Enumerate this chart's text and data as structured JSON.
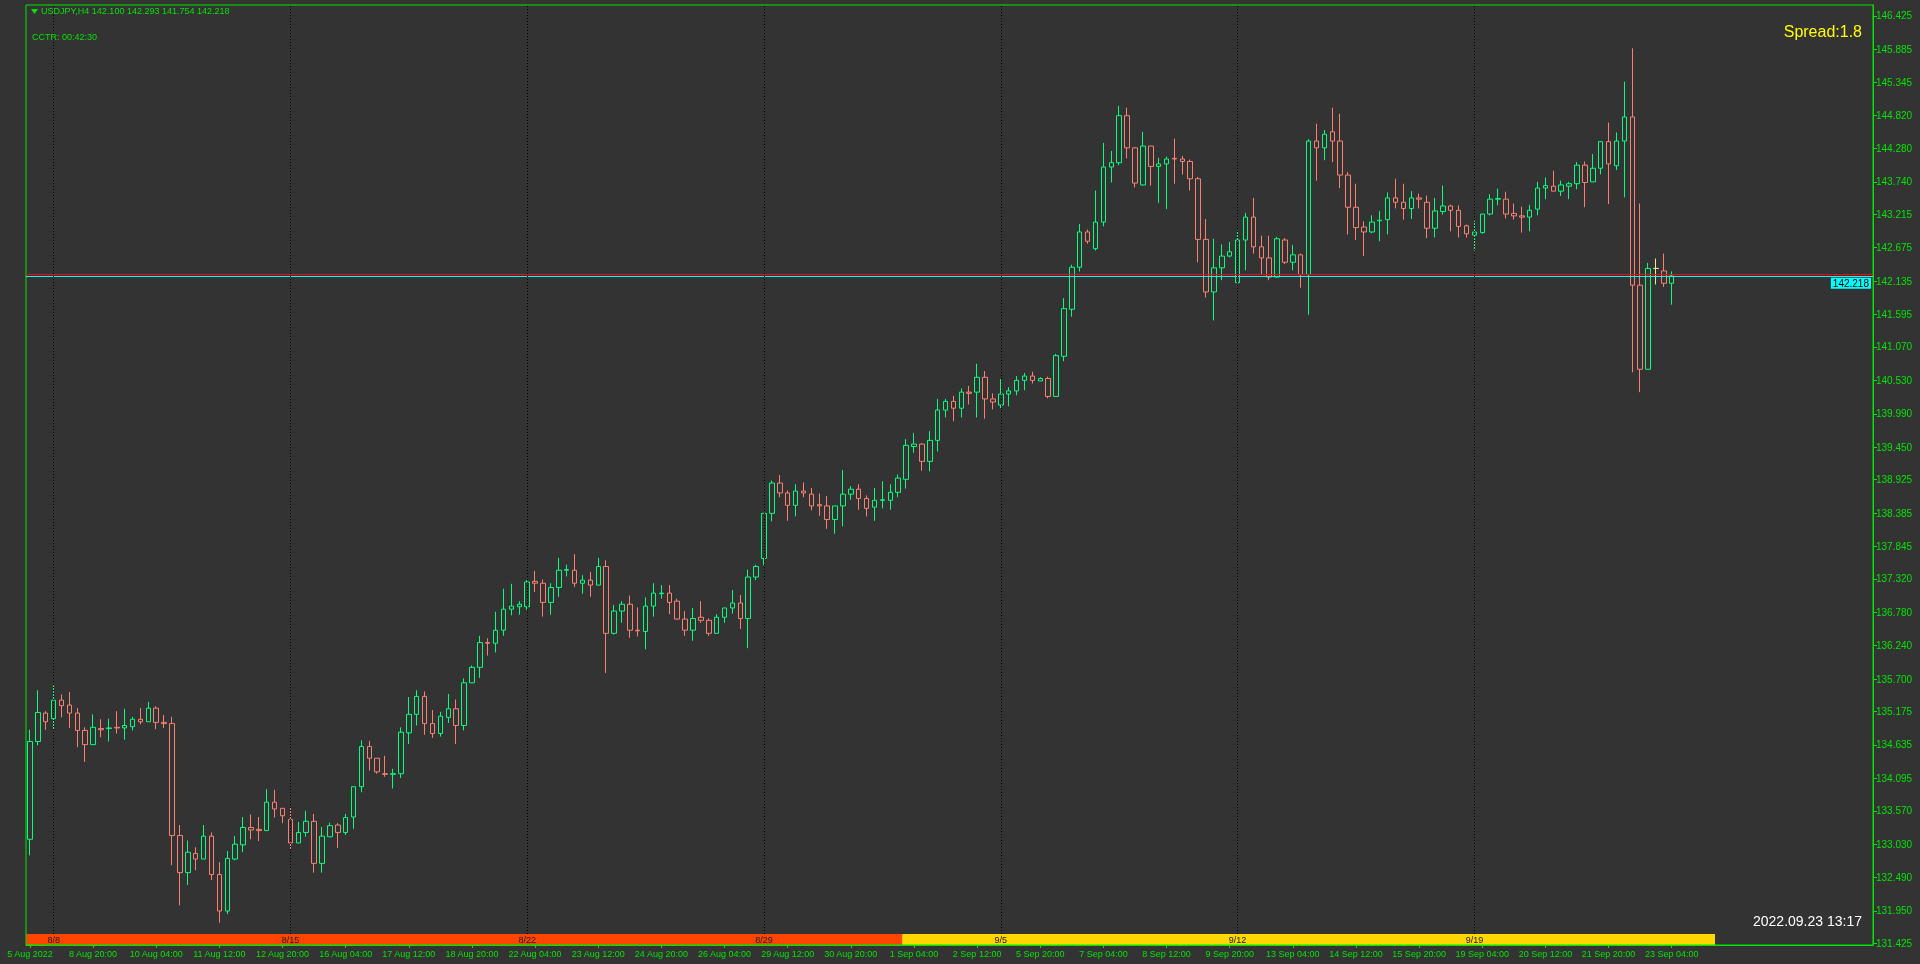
{
  "chart_data": {
    "type": "candlestick",
    "categories": [
      "5 Aug 2022",
      null,
      null,
      null,
      null,
      null,
      null,
      null,
      "8 Aug 20:00",
      null,
      null,
      null,
      null,
      null,
      null,
      null,
      "10 Aug 04:00",
      null,
      null,
      null,
      null,
      null,
      null,
      null,
      "11 Aug 12:00",
      null,
      null,
      null,
      null,
      null,
      null,
      null,
      "12 Aug 20:00",
      null,
      null,
      null,
      null,
      null,
      null,
      null,
      "16 Aug 04:00",
      null,
      null,
      null,
      null,
      null,
      null,
      null,
      "17 Aug 12:00",
      null,
      null,
      null,
      null,
      null,
      null,
      null,
      "18 Aug 20:00",
      null,
      null,
      null,
      null,
      null,
      null,
      null,
      "22 Aug 04:00",
      null,
      null,
      null,
      null,
      null,
      null,
      null,
      "23 Aug 12:00",
      null,
      null,
      null,
      null,
      null,
      null,
      null,
      "24 Aug 20:00",
      null,
      null,
      null,
      null,
      null,
      null,
      null,
      "26 Aug 04:00",
      null,
      null,
      null,
      null,
      null,
      null,
      null,
      "29 Aug 12:00",
      null,
      null,
      null,
      null,
      null,
      null,
      null,
      "30 Aug 20:00",
      null,
      null,
      null,
      null,
      null,
      null,
      null,
      "1 Sep 04:00",
      null,
      null,
      null,
      null,
      null,
      null,
      null,
      "2 Sep 12:00",
      null,
      null,
      null,
      null,
      null,
      null,
      null,
      "5 Sep 20:00",
      null,
      null,
      null,
      null,
      null,
      null,
      null,
      "7 Sep 04:00",
      null,
      null,
      null,
      null,
      null,
      null,
      null,
      "8 Sep 12:00",
      null,
      null,
      null,
      null,
      null,
      null,
      null,
      "9 Sep 20:00",
      null,
      null,
      null,
      null,
      null,
      null,
      null,
      "13 Sep 04:00",
      null,
      null,
      null,
      null,
      null,
      null,
      null,
      "14 Sep 12:00",
      null,
      null,
      null,
      null,
      null,
      null,
      null,
      "15 Sep 20:00",
      null,
      null,
      null,
      null,
      null,
      null,
      null,
      "19 Sep 04:00",
      null,
      null,
      null,
      null,
      null,
      null,
      null,
      "20 Sep 12:00",
      null,
      null,
      null,
      null,
      null,
      null,
      null,
      "21 Sep 20:00",
      null,
      null,
      null,
      null,
      null,
      null,
      null,
      "23 Sep 04:00",
      null,
      null,
      null,
      null,
      null,
      null,
      null,
      null,
      null,
      null,
      null,
      null,
      null,
      null,
      null,
      null,
      null,
      null,
      null,
      null,
      null,
      null,
      null,
      null,
      null
    ],
    "ohlc": [
      [
        133.11,
        134.88,
        132.85,
        134.69
      ],
      [
        134.69,
        135.52,
        134.63,
        135.16
      ],
      [
        135.15,
        135.18,
        134.88,
        135.01
      ],
      [
        135.06,
        135.6,
        134.89,
        135.36
      ],
      [
        135.36,
        135.45,
        135.08,
        135.27
      ],
      [
        135.28,
        135.49,
        134.91,
        135.15
      ],
      [
        135.15,
        135.23,
        134.6,
        134.87
      ],
      [
        134.87,
        134.92,
        134.36,
        134.64
      ],
      [
        134.64,
        135.13,
        134.64,
        134.92
      ],
      [
        134.9,
        135.05,
        134.76,
        134.88
      ],
      [
        134.9,
        135.06,
        134.69,
        134.91
      ],
      [
        134.92,
        135.18,
        134.82,
        134.91
      ],
      [
        134.91,
        135.22,
        134.72,
        134.95
      ],
      [
        134.93,
        135.09,
        134.87,
        135.05
      ],
      [
        135.05,
        135.23,
        134.97,
        135.01
      ],
      [
        135.01,
        135.33,
        135.01,
        135.23
      ],
      [
        135.23,
        135.26,
        134.89,
        135.0
      ],
      [
        135.0,
        135.12,
        134.91,
        134.98
      ],
      [
        134.98,
        135.09,
        132.69,
        133.17
      ],
      [
        133.17,
        133.34,
        132.04,
        132.57
      ],
      [
        132.57,
        133.09,
        132.37,
        132.9
      ],
      [
        132.88,
        132.98,
        132.61,
        132.79
      ],
      [
        132.79,
        133.34,
        132.79,
        133.16
      ],
      [
        133.16,
        133.22,
        132.45,
        132.54
      ],
      [
        132.54,
        132.74,
        131.76,
        131.95
      ],
      [
        131.95,
        132.92,
        131.9,
        132.8
      ],
      [
        132.79,
        133.16,
        132.77,
        133.03
      ],
      [
        133.02,
        133.47,
        132.9,
        133.3
      ],
      [
        133.3,
        133.51,
        133.11,
        133.26
      ],
      [
        133.27,
        133.47,
        133.08,
        133.25
      ],
      [
        133.25,
        133.92,
        133.25,
        133.71
      ],
      [
        133.71,
        133.91,
        133.46,
        133.6
      ],
      [
        133.61,
        133.61,
        133.37,
        133.49
      ],
      [
        133.43,
        133.63,
        132.94,
        133.05
      ],
      [
        133.05,
        133.39,
        133.05,
        133.22
      ],
      [
        133.22,
        133.57,
        133.15,
        133.4
      ],
      [
        133.4,
        133.52,
        132.57,
        132.72
      ],
      [
        132.72,
        133.31,
        132.57,
        133.16
      ],
      [
        133.15,
        133.38,
        133.15,
        133.33
      ],
      [
        133.34,
        133.37,
        132.97,
        133.22
      ],
      [
        133.22,
        133.52,
        133.18,
        133.46
      ],
      [
        133.47,
        133.96,
        133.28,
        133.96
      ],
      [
        133.96,
        134.71,
        133.87,
        134.61
      ],
      [
        134.61,
        134.7,
        134.22,
        134.42
      ],
      [
        134.42,
        134.42,
        134.17,
        134.2
      ],
      [
        134.17,
        134.46,
        134.12,
        134.16
      ],
      [
        134.16,
        134.25,
        133.93,
        134.17
      ],
      [
        134.17,
        134.92,
        134.1,
        134.84
      ],
      [
        134.83,
        135.41,
        134.65,
        135.13
      ],
      [
        135.13,
        135.52,
        134.95,
        135.42
      ],
      [
        135.42,
        135.5,
        134.8,
        134.98
      ],
      [
        134.98,
        135.2,
        134.75,
        134.82
      ],
      [
        134.82,
        135.17,
        134.77,
        135.1
      ],
      [
        135.08,
        135.46,
        134.99,
        135.22
      ],
      [
        135.22,
        135.37,
        134.65,
        134.95
      ],
      [
        134.95,
        135.71,
        134.87,
        135.64
      ],
      [
        135.64,
        135.92,
        135.64,
        135.89
      ],
      [
        135.89,
        136.4,
        135.72,
        136.29
      ],
      [
        136.29,
        136.36,
        136.08,
        136.28
      ],
      [
        136.28,
        136.79,
        136.13,
        136.49
      ],
      [
        136.49,
        137.16,
        136.4,
        136.83
      ],
      [
        136.83,
        137.24,
        136.73,
        136.88
      ],
      [
        136.87,
        136.96,
        136.74,
        136.91
      ],
      [
        136.87,
        137.3,
        136.82,
        137.27
      ],
      [
        137.28,
        137.45,
        137.11,
        137.25
      ],
      [
        137.25,
        137.31,
        136.71,
        136.94
      ],
      [
        136.94,
        137.25,
        136.74,
        137.18
      ],
      [
        137.18,
        137.66,
        137.03,
        137.46
      ],
      [
        137.46,
        137.55,
        137.36,
        137.47
      ],
      [
        137.46,
        137.72,
        137.19,
        137.25
      ],
      [
        137.25,
        137.38,
        137.08,
        137.3
      ],
      [
        137.3,
        137.43,
        137.03,
        137.22
      ],
      [
        137.22,
        137.66,
        137.22,
        137.52
      ],
      [
        137.52,
        137.62,
        135.8,
        136.44
      ],
      [
        136.44,
        136.9,
        136.42,
        136.8
      ],
      [
        136.8,
        136.96,
        136.61,
        136.91
      ],
      [
        136.91,
        137.05,
        136.37,
        136.49
      ],
      [
        136.49,
        136.86,
        136.39,
        136.48
      ],
      [
        136.47,
        137.02,
        136.18,
        136.88
      ],
      [
        136.88,
        137.25,
        136.71,
        137.09
      ],
      [
        137.08,
        137.22,
        137.0,
        137.09
      ],
      [
        137.09,
        137.22,
        136.75,
        136.94
      ],
      [
        136.96,
        137.0,
        136.66,
        136.67
      ],
      [
        136.67,
        136.8,
        136.4,
        136.49
      ],
      [
        136.49,
        136.85,
        136.32,
        136.68
      ],
      [
        136.7,
        136.96,
        136.61,
        136.65
      ],
      [
        136.65,
        136.68,
        136.4,
        136.44
      ],
      [
        136.44,
        136.75,
        136.44,
        136.7
      ],
      [
        136.7,
        136.85,
        136.61,
        136.85
      ],
      [
        136.85,
        137.14,
        136.76,
        136.93
      ],
      [
        136.93,
        137.06,
        136.51,
        136.68
      ],
      [
        136.68,
        137.47,
        136.2,
        137.35
      ],
      [
        137.35,
        137.55,
        137.3,
        137.52
      ],
      [
        137.65,
        138.38,
        137.54,
        138.38
      ],
      [
        138.38,
        138.91,
        138.25,
        138.87
      ],
      [
        138.87,
        139.0,
        138.64,
        138.71
      ],
      [
        138.71,
        138.75,
        138.26,
        138.51
      ],
      [
        138.51,
        138.85,
        138.33,
        138.74
      ],
      [
        138.74,
        138.88,
        138.64,
        138.71
      ],
      [
        138.69,
        138.79,
        138.43,
        138.5
      ],
      [
        138.52,
        138.7,
        138.34,
        138.5
      ],
      [
        138.5,
        138.66,
        138.13,
        138.28
      ],
      [
        138.28,
        138.5,
        138.05,
        138.5
      ],
      [
        138.5,
        139.08,
        138.17,
        138.69
      ],
      [
        138.69,
        138.82,
        138.6,
        138.77
      ],
      [
        138.77,
        138.85,
        138.44,
        138.62
      ],
      [
        138.62,
        138.67,
        138.33,
        138.46
      ],
      [
        138.48,
        138.79,
        138.26,
        138.59
      ],
      [
        138.59,
        138.9,
        138.46,
        138.6
      ],
      [
        138.59,
        138.85,
        138.44,
        138.72
      ],
      [
        138.72,
        139.01,
        138.64,
        138.95
      ],
      [
        138.93,
        139.58,
        138.78,
        139.48
      ],
      [
        139.46,
        139.68,
        139.36,
        139.5
      ],
      [
        139.5,
        139.51,
        139.07,
        139.22
      ],
      [
        139.22,
        139.71,
        139.06,
        139.56
      ],
      [
        139.56,
        140.23,
        139.38,
        140.05
      ],
      [
        140.05,
        140.23,
        139.93,
        140.19
      ],
      [
        140.19,
        140.28,
        139.87,
        140.08
      ],
      [
        140.08,
        140.4,
        139.93,
        140.34
      ],
      [
        140.34,
        140.44,
        140.14,
        140.32
      ],
      [
        140.34,
        140.8,
        139.93,
        140.58
      ],
      [
        140.58,
        140.68,
        139.91,
        140.23
      ],
      [
        140.23,
        140.32,
        140.06,
        140.18
      ],
      [
        140.13,
        140.55,
        140.08,
        140.31
      ],
      [
        140.31,
        140.42,
        140.11,
        140.36
      ],
      [
        140.36,
        140.6,
        140.29,
        140.53
      ],
      [
        140.53,
        140.65,
        140.37,
        140.6
      ],
      [
        140.6,
        140.67,
        140.48,
        140.53
      ],
      [
        140.52,
        140.58,
        140.52,
        140.56
      ],
      [
        140.56,
        140.59,
        140.24,
        140.27
      ],
      [
        140.27,
        140.96,
        140.27,
        140.93
      ],
      [
        140.92,
        141.86,
        140.84,
        141.69
      ],
      [
        141.68,
        142.4,
        141.56,
        142.36
      ],
      [
        142.36,
        143.06,
        142.29,
        142.93
      ],
      [
        142.93,
        142.97,
        142.74,
        142.78
      ],
      [
        142.66,
        143.6,
        142.63,
        143.09
      ],
      [
        143.09,
        144.37,
        143.02,
        143.98
      ],
      [
        143.98,
        144.24,
        143.73,
        144.05
      ],
      [
        144.05,
        144.97,
        144.01,
        144.81
      ],
      [
        144.81,
        144.94,
        144.12,
        144.29
      ],
      [
        144.29,
        144.3,
        143.65,
        143.72
      ],
      [
        143.69,
        144.55,
        143.68,
        144.32
      ],
      [
        144.32,
        144.32,
        143.68,
        143.99
      ],
      [
        143.99,
        144.13,
        143.4,
        144.03
      ],
      [
        144.03,
        144.15,
        143.3,
        144.11
      ],
      [
        144.12,
        144.44,
        143.71,
        144.11
      ],
      [
        144.11,
        144.16,
        143.86,
        144.07
      ],
      [
        144.07,
        144.1,
        143.6,
        143.79
      ],
      [
        143.79,
        143.82,
        142.44,
        142.81
      ],
      [
        142.81,
        143.14,
        141.87,
        141.96
      ],
      [
        141.96,
        142.82,
        141.5,
        142.35
      ],
      [
        142.35,
        142.73,
        142.15,
        142.54
      ],
      [
        142.54,
        142.77,
        142.52,
        142.61
      ],
      [
        142.11,
        142.95,
        142.11,
        142.8
      ],
      [
        142.8,
        143.24,
        142.31,
        143.17
      ],
      [
        143.17,
        143.48,
        142.58,
        142.69
      ],
      [
        142.69,
        142.87,
        142.24,
        142.51
      ],
      [
        142.51,
        142.87,
        142.15,
        142.2
      ],
      [
        142.2,
        142.85,
        142.2,
        142.82
      ],
      [
        142.8,
        142.83,
        142.41,
        142.44
      ],
      [
        142.44,
        142.72,
        142.31,
        142.56
      ],
      [
        142.56,
        142.58,
        142.03,
        142.24
      ],
      [
        142.24,
        144.43,
        141.59,
        144.4
      ],
      [
        144.4,
        144.68,
        143.76,
        144.29
      ],
      [
        144.29,
        144.58,
        144.09,
        144.51
      ],
      [
        144.55,
        144.94,
        144.06,
        144.4
      ],
      [
        144.4,
        144.84,
        143.64,
        143.85
      ],
      [
        143.85,
        143.9,
        142.89,
        143.33
      ],
      [
        143.33,
        143.71,
        142.8,
        143.0
      ],
      [
        143.01,
        143.1,
        142.54,
        142.93
      ],
      [
        142.93,
        143.2,
        142.91,
        143.09
      ],
      [
        143.11,
        143.27,
        142.78,
        143.12
      ],
      [
        143.13,
        143.57,
        142.89,
        143.48
      ],
      [
        143.48,
        143.79,
        143.31,
        143.41
      ],
      [
        143.41,
        143.71,
        143.13,
        143.31
      ],
      [
        143.31,
        143.59,
        143.14,
        143.48
      ],
      [
        143.48,
        143.55,
        143.31,
        143.46
      ],
      [
        143.41,
        143.52,
        142.83,
        142.99
      ],
      [
        142.99,
        143.48,
        142.84,
        143.27
      ],
      [
        143.26,
        143.68,
        143.21,
        143.35
      ],
      [
        143.35,
        143.37,
        142.94,
        143.28
      ],
      [
        143.28,
        143.36,
        142.84,
        143.02
      ],
      [
        143.03,
        143.05,
        142.84,
        142.9
      ],
      [
        142.88,
        143.11,
        142.63,
        142.93
      ],
      [
        142.92,
        143.22,
        142.9,
        143.22
      ],
      [
        143.22,
        143.54,
        143.2,
        143.46
      ],
      [
        143.46,
        143.63,
        143.36,
        143.47
      ],
      [
        143.46,
        143.58,
        143.15,
        143.22
      ],
      [
        143.23,
        143.39,
        143.13,
        143.19
      ],
      [
        143.19,
        143.34,
        142.92,
        143.17
      ],
      [
        143.17,
        143.37,
        142.94,
        143.28
      ],
      [
        143.3,
        143.74,
        143.2,
        143.64
      ],
      [
        143.64,
        143.81,
        143.46,
        143.68
      ],
      [
        143.67,
        143.92,
        143.59,
        143.59
      ],
      [
        143.59,
        143.76,
        143.51,
        143.69
      ],
      [
        143.67,
        143.74,
        143.46,
        143.71
      ],
      [
        143.71,
        144.06,
        143.62,
        144.01
      ],
      [
        144.01,
        144.07,
        143.33,
        143.73
      ],
      [
        143.74,
        144.19,
        143.74,
        143.96
      ],
      [
        143.96,
        144.39,
        143.86,
        144.39
      ],
      [
        144.39,
        144.7,
        143.38,
        144.03
      ],
      [
        144.0,
        144.54,
        143.93,
        144.4
      ],
      [
        144.4,
        145.36,
        143.49,
        144.79
      ],
      [
        144.79,
        145.9,
        140.66,
        142.07
      ],
      [
        142.07,
        143.39,
        140.34,
        140.71
      ],
      [
        140.71,
        142.43,
        140.71,
        142.34
      ],
      [
        142.34,
        142.5,
        142.08,
        142.34
      ],
      [
        142.3,
        142.58,
        142.04,
        142.1
      ],
      [
        142.1,
        142.293,
        141.754,
        142.218
      ],
      null,
      null,
      null,
      null,
      null,
      null,
      null,
      null,
      null,
      null,
      null,
      null,
      null,
      null,
      null,
      null,
      null,
      null,
      null,
      null,
      null,
      null,
      null,
      null,
      null
    ],
    "colors": [
      "#00ff7f",
      "#00ff7f",
      "#fa8072",
      "#00ff7f",
      "#fa8072",
      "#fa8072",
      "#fa8072",
      "#fa8072",
      "#00ff7f",
      "#fa8072",
      "#00ff7f",
      "#fa8072",
      "#00ff7f",
      "#00ff7f",
      "#fa8072",
      "#00ff7f",
      "#fa8072",
      "#fa8072",
      "#fa8072",
      "#fa8072",
      "#00ff7f",
      "#fa8072",
      "#00ff7f",
      "#fa8072",
      "#fa8072",
      "#00ff7f",
      "#00ff7f",
      "#00ff7f",
      "#fa8072",
      "#fa8072",
      "#00ff7f",
      "#fa8072",
      "#fa8072",
      "#fa8072",
      "#00ff7f",
      "#00ff7f",
      "#fa8072",
      "#00ff7f",
      "#00ff7f",
      "#fa8072",
      "#00ff7f",
      "#00ff7f",
      "#00ff7f",
      "#fa8072",
      "#fa8072",
      "#fa8072",
      "#00ff7f",
      "#00ff7f",
      "#00ff7f",
      "#00ff7f",
      "#fa8072",
      "#fa8072",
      "#00ff7f",
      "#00ff7f",
      "#fa8072",
      "#00ff7f",
      "#00ff7f",
      "#00ff7f",
      "#fa8072",
      "#00ff7f",
      "#00ff7f",
      "#00ff7f",
      "#00ff7f",
      "#00ff7f",
      "#fa8072",
      "#fa8072",
      "#00ff7f",
      "#00ff7f",
      "#00ff7f",
      "#fa8072",
      "#00ff7f",
      "#fa8072",
      "#00ff7f",
      "#fa8072",
      "#00ff7f",
      "#00ff7f",
      "#fa8072",
      "#fa8072",
      "#00ff7f",
      "#00ff7f",
      "#00ff7f",
      "#fa8072",
      "#fa8072",
      "#fa8072",
      "#00ff7f",
      "#fa8072",
      "#fa8072",
      "#00ff7f",
      "#00ff7f",
      "#00ff7f",
      "#fa8072",
      "#00ff7f",
      "#00ff7f",
      "#00ff7f",
      "#00ff7f",
      "#fa8072",
      "#fa8072",
      "#00ff7f",
      "#fa8072",
      "#fa8072",
      "#fa8072",
      "#fa8072",
      "#00ff7f",
      "#00ff7f",
      "#00ff7f",
      "#fa8072",
      "#fa8072",
      "#00ff7f",
      "#00ff7f",
      "#00ff7f",
      "#00ff7f",
      "#00ff7f",
      "#00ff7f",
      "#fa8072",
      "#00ff7f",
      "#00ff7f",
      "#00ff7f",
      "#fa8072",
      "#00ff7f",
      "#fa8072",
      "#00ff7f",
      "#fa8072",
      "#fa8072",
      "#00ff7f",
      "#00ff7f",
      "#00ff7f",
      "#00ff7f",
      "#fa8072",
      "#00ff7f",
      "#fa8072",
      "#00ff7f",
      "#00ff7f",
      "#00ff7f",
      "#00ff7f",
      "#fa8072",
      "#00ff7f",
      "#00ff7f",
      "#00ff7f",
      "#00ff7f",
      "#fa8072",
      "#fa8072",
      "#00ff7f",
      "#fa8072",
      "#00ff7f",
      "#00ff7f",
      "#fa8072",
      "#fa8072",
      "#fa8072",
      "#fa8072",
      "#fa8072",
      "#00ff7f",
      "#00ff7f",
      "#00ff7f",
      "#00ff7f",
      "#00ff7f",
      "#fa8072",
      "#fa8072",
      "#fa8072",
      "#00ff7f",
      "#fa8072",
      "#00ff7f",
      "#fa8072",
      "#00ff7f",
      "#fa8072",
      "#00ff7f",
      "#fa8072",
      "#fa8072",
      "#fa8072",
      "#fa8072",
      "#fa8072",
      "#00ff7f",
      "#00ff7f",
      "#00ff7f",
      "#fa8072",
      "#fa8072",
      "#00ff7f",
      "#fa8072",
      "#fa8072",
      "#00ff7f",
      "#00ff7f",
      "#fa8072",
      "#fa8072",
      "#fa8072",
      "#00ff7f",
      "#00ff7f",
      "#00ff7f",
      "#00ff7f",
      "#fa8072",
      "#fa8072",
      "#fa8072",
      "#00ff7f",
      "#00ff7f",
      "#00ff7f",
      "#fa8072",
      "#00ff7f",
      "#00ff7f",
      "#00ff7f",
      "#fa8072",
      "#00ff7f",
      "#00ff7f",
      "#fa8072",
      "#00ff7f",
      "#00ff7f",
      "#fa8072",
      "#fa8072",
      "#00ff7f",
      "#f0e68c",
      "#fa8072",
      "#00ff7f",
      null,
      null,
      null,
      null,
      null,
      null,
      null,
      null,
      null,
      null,
      null,
      null,
      null,
      null,
      null,
      null,
      null,
      null,
      null,
      null,
      null,
      null,
      null,
      null,
      null
    ],
    "ylim": [
      131.4,
      146.6
    ],
    "yticks": [
      131.425,
      {
        "value": 131.95,
        "label": "131.950"
      },
      {
        "value": 132.49,
        "label": "132.490"
      },
      {
        "value": 133.03,
        "label": "133.030"
      },
      {
        "value": 133.57,
        "label": "133.570"
      },
      134.095,
      134.635,
      135.175,
      {
        "value": 135.7,
        "label": "135.700"
      },
      {
        "value": 136.24,
        "label": "136.240"
      },
      {
        "value": 136.78,
        "label": "136.780"
      },
      {
        "value": 137.32,
        "label": "137.320"
      },
      137.845,
      138.385,
      138.925,
      {
        "value": 139.45,
        "label": "139.450"
      },
      {
        "value": 139.99,
        "label": "139.990"
      },
      {
        "value": 140.53,
        "label": "140.530"
      },
      {
        "value": 141.07,
        "label": "141.070"
      },
      141.595,
      142.135,
      142.675,
      143.215,
      {
        "value": 143.74,
        "label": "143.740"
      },
      {
        "value": 144.28,
        "label": "144.280"
      },
      {
        "value": 144.82,
        "label": "144.820"
      },
      145.345,
      145.885,
      146.425
    ],
    "ref_lines": [
      {
        "axis": "y",
        "value": 142.24,
        "color": "#ff0000",
        "line_style": "solid"
      },
      {
        "axis": "y",
        "value": 142.218,
        "label": "142.218",
        "color": "#00ffff",
        "line_style": "solid"
      }
    ],
    "annotations": [
      "USDJPY,H4 142.100 142.293 141.754 142.218",
      "CCTR: 00:42:30",
      "Spread:1.8",
      "2022.09.23 13:17",
      "8/8",
      "8/15",
      "8/22",
      "8/29",
      "9/5",
      "9/12",
      "9/19"
    ]
  }
}
